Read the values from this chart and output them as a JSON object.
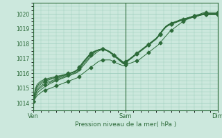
{
  "bg_color": "#cce8dd",
  "grid_color": "#99ccbb",
  "line_color": "#2d6b3a",
  "marker_color": "#2d6b3a",
  "xlabel": "Pression niveau de la mer( hPa )",
  "xtick_labels": [
    "Ven",
    "Sam",
    "Dim"
  ],
  "xtick_positions": [
    0,
    48,
    96
  ],
  "ylim": [
    1013.6,
    1020.4
  ],
  "yticks": [
    1014,
    1015,
    1016,
    1017,
    1018,
    1019,
    1020
  ],
  "total_points": 97,
  "series": [
    [
      1014.1,
      1014.3,
      1014.5,
      1014.6,
      1014.7,
      1014.8,
      1014.85,
      1014.9,
      1014.95,
      1015.0,
      1015.05,
      1015.1,
      1015.15,
      1015.2,
      1015.25,
      1015.3,
      1015.35,
      1015.4,
      1015.45,
      1015.5,
      1015.55,
      1015.6,
      1015.65,
      1015.7,
      1015.8,
      1015.9,
      1016.0,
      1016.1,
      1016.2,
      1016.3,
      1016.4,
      1016.5,
      1016.6,
      1016.7,
      1016.8,
      1016.85,
      1016.9,
      1016.9,
      1016.9,
      1016.9,
      1016.9,
      1016.85,
      1016.8,
      1016.7,
      1016.65,
      1016.6,
      1016.55,
      1016.5,
      1016.55,
      1016.6,
      1016.65,
      1016.7,
      1016.75,
      1016.8,
      1016.85,
      1016.9,
      1017.0,
      1017.1,
      1017.2,
      1017.3,
      1017.4,
      1017.5,
      1017.6,
      1017.7,
      1017.8,
      1017.9,
      1018.05,
      1018.2,
      1018.35,
      1018.5,
      1018.65,
      1018.8,
      1018.9,
      1019.0,
      1019.1,
      1019.2,
      1019.3,
      1019.4,
      1019.48,
      1019.55,
      1019.62,
      1019.68,
      1019.74,
      1019.8,
      1019.85,
      1019.9,
      1019.95,
      1020.0,
      1020.05,
      1020.1,
      1020.1,
      1020.1,
      1020.1,
      1020.1,
      1020.1,
      1020.1,
      1020.1
    ],
    [
      1014.1,
      1014.4,
      1014.65,
      1014.8,
      1014.9,
      1015.0,
      1015.1,
      1015.18,
      1015.25,
      1015.32,
      1015.38,
      1015.44,
      1015.5,
      1015.55,
      1015.6,
      1015.65,
      1015.7,
      1015.75,
      1015.8,
      1015.85,
      1015.9,
      1015.95,
      1016.0,
      1016.05,
      1016.2,
      1016.35,
      1016.5,
      1016.65,
      1016.8,
      1016.95,
      1017.1,
      1017.2,
      1017.3,
      1017.4,
      1017.5,
      1017.55,
      1017.6,
      1017.58,
      1017.55,
      1017.5,
      1017.45,
      1017.35,
      1017.25,
      1017.15,
      1017.05,
      1016.95,
      1016.85,
      1016.75,
      1016.8,
      1016.87,
      1016.95,
      1017.05,
      1017.15,
      1017.25,
      1017.35,
      1017.45,
      1017.55,
      1017.65,
      1017.75,
      1017.85,
      1017.95,
      1018.05,
      1018.15,
      1018.25,
      1018.35,
      1018.5,
      1018.65,
      1018.85,
      1019.0,
      1019.15,
      1019.25,
      1019.32,
      1019.38,
      1019.43,
      1019.48,
      1019.52,
      1019.58,
      1019.62,
      1019.65,
      1019.68,
      1019.72,
      1019.76,
      1019.8,
      1019.84,
      1019.87,
      1019.9,
      1019.93,
      1019.96,
      1019.99,
      1020.02,
      1020.02,
      1020.02,
      1020.02,
      1020.02,
      1020.02,
      1020.02,
      1020.02
    ],
    [
      1014.1,
      1014.5,
      1014.8,
      1014.95,
      1015.05,
      1015.15,
      1015.23,
      1015.3,
      1015.35,
      1015.4,
      1015.45,
      1015.5,
      1015.55,
      1015.6,
      1015.65,
      1015.7,
      1015.75,
      1015.8,
      1015.85,
      1015.9,
      1015.95,
      1016.0,
      1016.05,
      1016.12,
      1016.28,
      1016.44,
      1016.6,
      1016.75,
      1016.9,
      1017.05,
      1017.2,
      1017.3,
      1017.4,
      1017.5,
      1017.57,
      1017.62,
      1017.65,
      1017.62,
      1017.58,
      1017.52,
      1017.45,
      1017.35,
      1017.24,
      1017.13,
      1017.02,
      1016.92,
      1016.82,
      1016.72,
      1016.78,
      1016.86,
      1016.96,
      1017.06,
      1017.16,
      1017.26,
      1017.36,
      1017.46,
      1017.56,
      1017.66,
      1017.76,
      1017.86,
      1017.96,
      1018.06,
      1018.16,
      1018.26,
      1018.36,
      1018.51,
      1018.66,
      1018.86,
      1019.01,
      1019.16,
      1019.25,
      1019.32,
      1019.37,
      1019.42,
      1019.47,
      1019.52,
      1019.57,
      1019.62,
      1019.65,
      1019.68,
      1019.72,
      1019.76,
      1019.8,
      1019.83,
      1019.87,
      1019.9,
      1019.93,
      1019.97,
      1020.0,
      1020.02,
      1020.02,
      1020.02,
      1020.02,
      1020.02,
      1020.02,
      1020.02,
      1020.02
    ],
    [
      1014.1,
      1014.6,
      1014.9,
      1015.05,
      1015.15,
      1015.25,
      1015.33,
      1015.38,
      1015.43,
      1015.47,
      1015.52,
      1015.57,
      1015.62,
      1015.67,
      1015.72,
      1015.77,
      1015.82,
      1015.87,
      1015.92,
      1015.97,
      1016.02,
      1016.07,
      1016.12,
      1016.2,
      1016.36,
      1016.53,
      1016.7,
      1016.85,
      1017.0,
      1017.15,
      1017.3,
      1017.38,
      1017.45,
      1017.52,
      1017.58,
      1017.62,
      1017.65,
      1017.62,
      1017.58,
      1017.5,
      1017.43,
      1017.33,
      1017.22,
      1017.11,
      1017.0,
      1016.89,
      1016.78,
      1016.68,
      1016.75,
      1016.84,
      1016.94,
      1017.04,
      1017.14,
      1017.24,
      1017.34,
      1017.44,
      1017.54,
      1017.64,
      1017.74,
      1017.84,
      1017.94,
      1018.04,
      1018.14,
      1018.24,
      1018.34,
      1018.49,
      1018.64,
      1018.84,
      1018.99,
      1019.14,
      1019.23,
      1019.3,
      1019.35,
      1019.4,
      1019.45,
      1019.5,
      1019.55,
      1019.6,
      1019.63,
      1019.66,
      1019.7,
      1019.73,
      1019.77,
      1019.8,
      1019.83,
      1019.87,
      1019.9,
      1019.94,
      1019.97,
      1019.99,
      1019.99,
      1019.99,
      1019.99,
      1019.99,
      1019.99,
      1019.99,
      1019.99
    ],
    [
      1014.1,
      1014.75,
      1015.05,
      1015.18,
      1015.28,
      1015.37,
      1015.44,
      1015.5,
      1015.55,
      1015.59,
      1015.63,
      1015.67,
      1015.71,
      1015.75,
      1015.79,
      1015.83,
      1015.87,
      1015.91,
      1015.95,
      1015.99,
      1016.03,
      1016.08,
      1016.14,
      1016.22,
      1016.39,
      1016.56,
      1016.73,
      1016.88,
      1017.03,
      1017.18,
      1017.32,
      1017.4,
      1017.47,
      1017.53,
      1017.58,
      1017.61,
      1017.63,
      1017.6,
      1017.56,
      1017.49,
      1017.41,
      1017.31,
      1017.2,
      1017.09,
      1016.98,
      1016.87,
      1016.76,
      1016.65,
      1016.72,
      1016.82,
      1016.92,
      1017.02,
      1017.12,
      1017.22,
      1017.32,
      1017.42,
      1017.52,
      1017.62,
      1017.72,
      1017.82,
      1017.92,
      1018.02,
      1018.12,
      1018.22,
      1018.32,
      1018.47,
      1018.62,
      1018.82,
      1018.97,
      1019.12,
      1019.21,
      1019.28,
      1019.33,
      1019.38,
      1019.43,
      1019.48,
      1019.53,
      1019.58,
      1019.61,
      1019.64,
      1019.68,
      1019.71,
      1019.75,
      1019.78,
      1019.82,
      1019.85,
      1019.88,
      1019.92,
      1019.95,
      1019.97,
      1019.97,
      1019.97,
      1019.97,
      1019.97,
      1019.97,
      1019.97,
      1019.97
    ],
    [
      1014.1,
      1014.85,
      1015.15,
      1015.28,
      1015.38,
      1015.46,
      1015.52,
      1015.57,
      1015.61,
      1015.65,
      1015.68,
      1015.71,
      1015.74,
      1015.77,
      1015.81,
      1015.85,
      1015.88,
      1015.92,
      1015.96,
      1016.0,
      1016.04,
      1016.09,
      1016.15,
      1016.24,
      1016.41,
      1016.58,
      1016.75,
      1016.9,
      1017.05,
      1017.2,
      1017.34,
      1017.41,
      1017.47,
      1017.52,
      1017.56,
      1017.59,
      1017.6,
      1017.57,
      1017.53,
      1017.46,
      1017.38,
      1017.28,
      1017.17,
      1017.06,
      1016.95,
      1016.84,
      1016.73,
      1016.62,
      1016.69,
      1016.79,
      1016.89,
      1016.99,
      1017.09,
      1017.19,
      1017.29,
      1017.39,
      1017.49,
      1017.59,
      1017.69,
      1017.79,
      1017.89,
      1017.99,
      1018.09,
      1018.19,
      1018.29,
      1018.44,
      1018.59,
      1018.79,
      1018.94,
      1019.09,
      1019.18,
      1019.25,
      1019.3,
      1019.35,
      1019.4,
      1019.45,
      1019.5,
      1019.55,
      1019.58,
      1019.61,
      1019.65,
      1019.68,
      1019.72,
      1019.76,
      1019.79,
      1019.83,
      1019.86,
      1019.9,
      1019.93,
      1019.95,
      1019.95,
      1019.95,
      1019.95,
      1019.95,
      1019.95,
      1019.95,
      1019.95
    ],
    [
      1014.1,
      1014.95,
      1015.25,
      1015.38,
      1015.47,
      1015.54,
      1015.59,
      1015.63,
      1015.67,
      1015.7,
      1015.73,
      1015.76,
      1015.79,
      1015.82,
      1015.85,
      1015.88,
      1015.91,
      1015.95,
      1015.99,
      1016.02,
      1016.06,
      1016.11,
      1016.17,
      1016.27,
      1016.44,
      1016.61,
      1016.78,
      1016.93,
      1017.08,
      1017.23,
      1017.37,
      1017.44,
      1017.5,
      1017.55,
      1017.59,
      1017.62,
      1017.63,
      1017.6,
      1017.56,
      1017.49,
      1017.41,
      1017.31,
      1017.2,
      1017.09,
      1016.98,
      1016.87,
      1016.76,
      1016.65,
      1016.72,
      1016.82,
      1016.92,
      1017.02,
      1017.12,
      1017.22,
      1017.32,
      1017.42,
      1017.52,
      1017.62,
      1017.72,
      1017.82,
      1017.92,
      1018.02,
      1018.12,
      1018.22,
      1018.32,
      1018.47,
      1018.62,
      1018.82,
      1018.97,
      1019.12,
      1019.21,
      1019.28,
      1019.33,
      1019.38,
      1019.43,
      1019.48,
      1019.53,
      1019.58,
      1019.61,
      1019.64,
      1019.68,
      1019.71,
      1019.75,
      1019.79,
      1019.82,
      1019.85,
      1019.88,
      1019.92,
      1019.95,
      1019.97,
      1019.97,
      1019.97,
      1019.97,
      1019.97,
      1019.97,
      1019.97,
      1019.97
    ]
  ],
  "marker_series": [
    0,
    2,
    4,
    6
  ],
  "marker_interval": 6,
  "marker": "D",
  "marker_size": 2.5,
  "lw": 0.7
}
